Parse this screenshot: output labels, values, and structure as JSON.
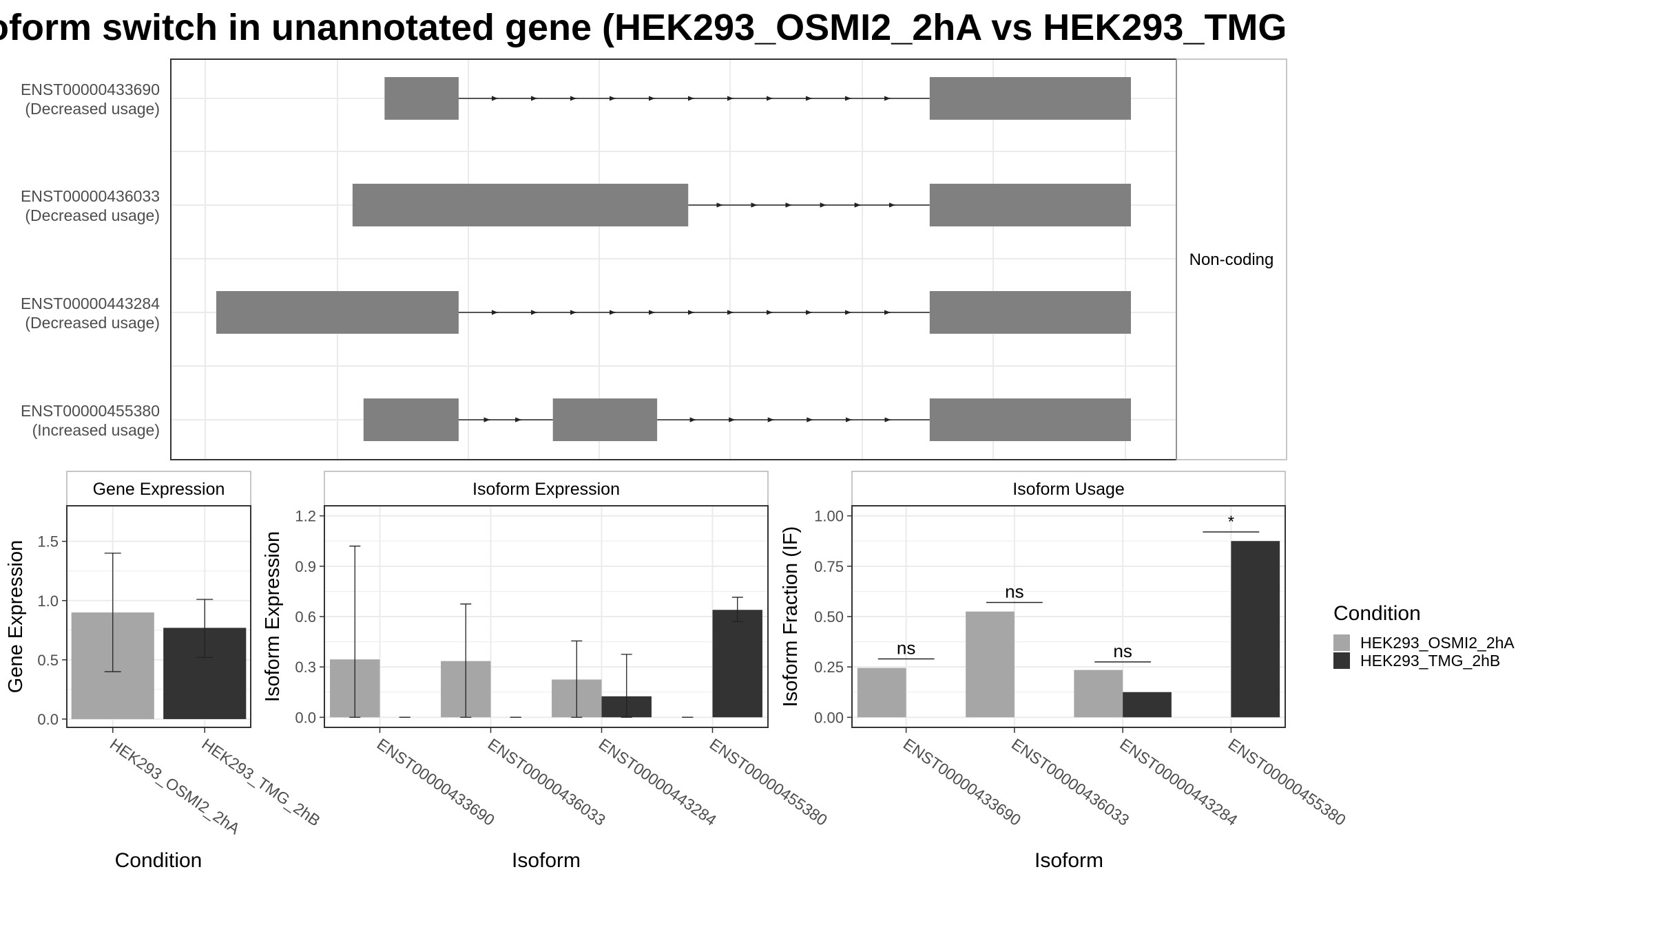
{
  "title": "oform switch in unannotated gene (HEK293_OSMI2_2hA vs HEK293_TMG",
  "colors": {
    "condition_a": "#a6a6a6",
    "condition_b": "#333333",
    "exon": "#808080",
    "grid": "#ebebeb",
    "frame": "#333333",
    "strip_border": "#b3b3b3"
  },
  "legend": {
    "title": "Condition",
    "items": [
      {
        "label": "HEK293_OSMI2_2hA",
        "color": "#a6a6a6"
      },
      {
        "label": "HEK293_TMG_2hB",
        "color": "#333333"
      }
    ]
  },
  "chart_data": [
    {
      "panel": "transcript_structure",
      "type": "gene-structure",
      "facet_label": "Non-coding",
      "transcripts": [
        {
          "id": "ENST00000433690",
          "status": "(Decreased usage)",
          "exons": [
            [
              0.184,
              0.265
            ],
            [
              0.78,
              1.0
            ]
          ]
        },
        {
          "id": "ENST00000436033",
          "status": "(Decreased usage)",
          "exons": [
            [
              0.149,
              0.516
            ],
            [
              0.78,
              1.0
            ]
          ]
        },
        {
          "id": "ENST00000443284",
          "status": "(Decreased usage)",
          "exons": [
            [
              0.0,
              0.265
            ],
            [
              0.78,
              1.0
            ]
          ]
        },
        {
          "id": "ENST00000455380",
          "status": "(Increased usage)",
          "exons": [
            [
              0.161,
              0.265
            ],
            [
              0.368,
              0.482
            ],
            [
              0.78,
              1.0
            ]
          ]
        }
      ]
    },
    {
      "panel": "gene_expression",
      "type": "bar",
      "strip": "Gene Expression",
      "xlabel": "Condition",
      "ylabel": "Gene Expression",
      "ylim": [
        -0.07,
        1.8
      ],
      "yticks": [
        0.0,
        0.5,
        1.0,
        1.5
      ],
      "tick_labels": [
        "0.0",
        "0.5",
        "1.0",
        "1.5"
      ],
      "categories": [
        "HEK293_OSMI2_2hA",
        "HEK293_TMG_2hB"
      ],
      "values": [
        0.9,
        0.77
      ],
      "errors": [
        [
          0.4,
          1.4
        ],
        [
          0.52,
          1.01
        ]
      ]
    },
    {
      "panel": "isoform_expression",
      "type": "bar",
      "strip": "Isoform Expression",
      "xlabel": "Isoform",
      "ylabel": "Isoform Expression",
      "ylim": [
        -0.06,
        1.26
      ],
      "yticks": [
        0.0,
        0.3,
        0.6,
        0.9,
        1.2
      ],
      "tick_labels": [
        "0.0",
        "0.3",
        "0.6",
        "0.9",
        "1.2"
      ],
      "categories": [
        "ENST00000433690",
        "ENST00000436033",
        "ENST00000443284",
        "ENST00000455380"
      ],
      "series": [
        {
          "name": "HEK293_OSMI2_2hA",
          "values": [
            0.345,
            0.335,
            0.225,
            0.0
          ],
          "errors": [
            [
              0.0,
              1.02
            ],
            [
              0.0,
              0.675
            ],
            [
              0.0,
              0.455
            ],
            [
              0.0,
              0.0
            ]
          ]
        },
        {
          "name": "HEK293_TMG_2hB",
          "values": [
            0.0,
            0.0,
            0.125,
            0.64
          ],
          "errors": [
            [
              0.0,
              0.0
            ],
            [
              0.0,
              0.0
            ],
            [
              0.0,
              0.375
            ],
            [
              0.57,
              0.715
            ]
          ]
        }
      ]
    },
    {
      "panel": "isoform_usage",
      "type": "bar",
      "strip": "Isoform Usage",
      "xlabel": "Isoform",
      "ylabel": "Isoform Fraction (IF)",
      "ylim": [
        -0.05,
        1.05
      ],
      "yticks": [
        0.0,
        0.25,
        0.5,
        0.75,
        1.0
      ],
      "tick_labels": [
        "0.00",
        "0.25",
        "0.50",
        "0.75",
        "1.00"
      ],
      "categories": [
        "ENST00000433690",
        "ENST00000436033",
        "ENST00000443284",
        "ENST00000455380"
      ],
      "series": [
        {
          "name": "HEK293_OSMI2_2hA",
          "values": [
            0.245,
            0.525,
            0.235,
            0.0
          ]
        },
        {
          "name": "HEK293_TMG_2hB",
          "values": [
            0.0,
            0.0,
            0.125,
            0.875
          ]
        }
      ],
      "significance": [
        "ns",
        "ns",
        "ns",
        "*"
      ],
      "significance_level": [
        0.29,
        0.57,
        0.275,
        0.92
      ]
    }
  ]
}
